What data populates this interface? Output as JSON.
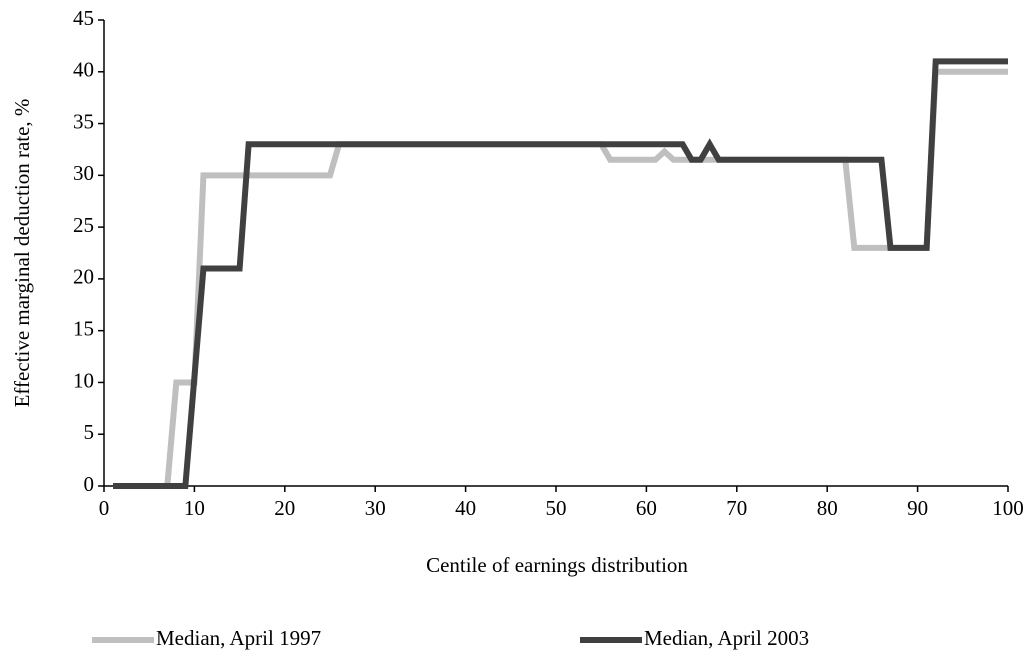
{
  "chart_data": {
    "type": "line",
    "x_label": "Centile of earnings distribution",
    "y_label": "Effective marginal deduction rate, %",
    "series": [
      {
        "name": "Median, April 1997",
        "color": "#bfbfbf",
        "x": [
          1,
          7,
          8,
          10,
          11,
          25,
          26,
          55,
          56,
          61,
          62,
          63,
          82,
          83,
          91,
          92,
          100
        ],
        "values": [
          0,
          0,
          10,
          10,
          30,
          30,
          33,
          33,
          31.5,
          31.5,
          32.3,
          31.5,
          31.5,
          23,
          23,
          40,
          40
        ]
      },
      {
        "name": "Median, April 2003",
        "color": "#404040",
        "x": [
          1,
          9,
          11,
          15,
          16,
          64,
          65,
          66,
          67,
          68,
          86,
          87,
          91,
          92,
          100
        ],
        "values": [
          0,
          0,
          21,
          21,
          33,
          33,
          31.5,
          31.5,
          33,
          31.5,
          31.5,
          23,
          23,
          41,
          41
        ]
      }
    ],
    "xlim": [
      0,
      100
    ],
    "xticks": [
      0,
      10,
      20,
      30,
      40,
      50,
      60,
      70,
      80,
      90,
      100
    ],
    "ylim": [
      0,
      45
    ],
    "yticks": [
      0,
      5,
      10,
      15,
      20,
      25,
      30,
      35,
      40,
      45
    ],
    "grid": false,
    "legend": "bottom"
  }
}
